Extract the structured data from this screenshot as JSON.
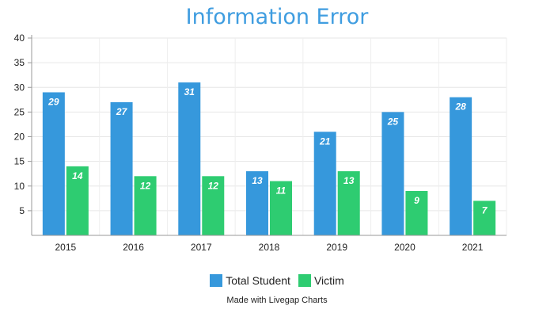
{
  "chart_data": {
    "type": "bar",
    "title": "Information Error",
    "categories": [
      "2015",
      "2016",
      "2017",
      "2018",
      "2019",
      "2020",
      "2021"
    ],
    "series": [
      {
        "name": "Total Student",
        "values": [
          29,
          27,
          31,
          13,
          21,
          25,
          28
        ],
        "color": "#3698dc"
      },
      {
        "name": "Victim",
        "values": [
          14,
          12,
          12,
          11,
          13,
          9,
          7
        ],
        "color": "#2ecc71"
      }
    ],
    "ylim": [
      0,
      40
    ],
    "yticks": [
      5,
      10,
      15,
      20,
      25,
      30,
      35,
      40
    ],
    "grid": true,
    "legend_position": "bottom"
  },
  "credit": "Made with Livegap Charts"
}
